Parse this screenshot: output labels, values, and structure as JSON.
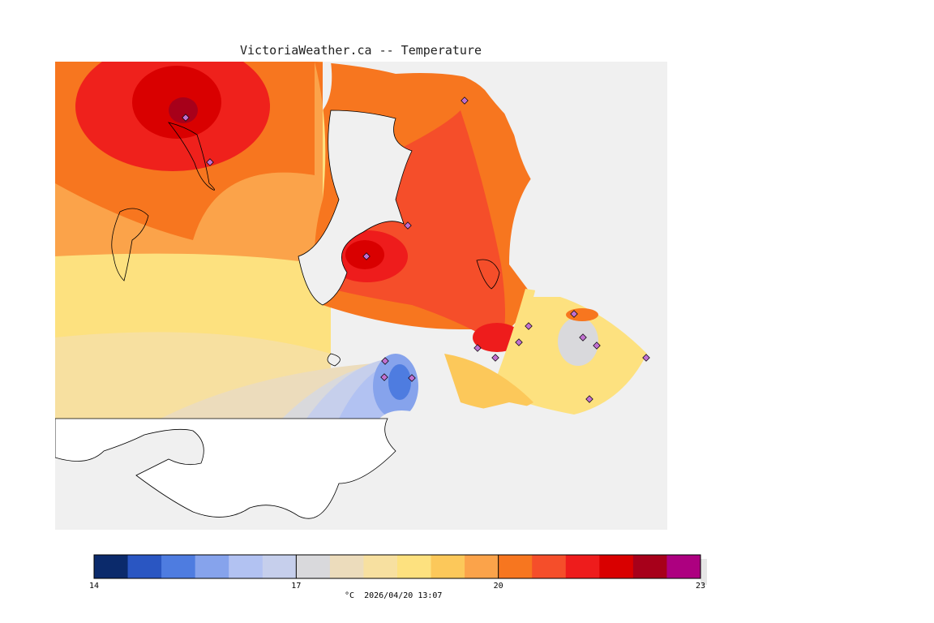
{
  "title": "VictoriaWeather.ca -- Temperature",
  "legend": {
    "min": 14,
    "max": 23,
    "ticks": [
      "14",
      "17",
      "20",
      "23"
    ],
    "colors": [
      "#0b2a6b",
      "#2a56c2",
      "#4e7ce0",
      "#86a3ec",
      "#b2c2f2",
      "#c6cfec",
      "#d9d9dc",
      "#ecdcbc",
      "#f7e0a0",
      "#fde17f",
      "#fcc85a",
      "#fba34a",
      "#f7761f",
      "#f54e2a",
      "#ee1c1c",
      "#d90000",
      "#a7001a",
      "#ad0080"
    ]
  },
  "footer": {
    "unit": "°C",
    "datetime": "2026/04/20 13:07"
  },
  "palette": {
    "background": "#f0f0f0",
    "land_outline": "#000000",
    "station_marker": "#c070d0"
  }
}
